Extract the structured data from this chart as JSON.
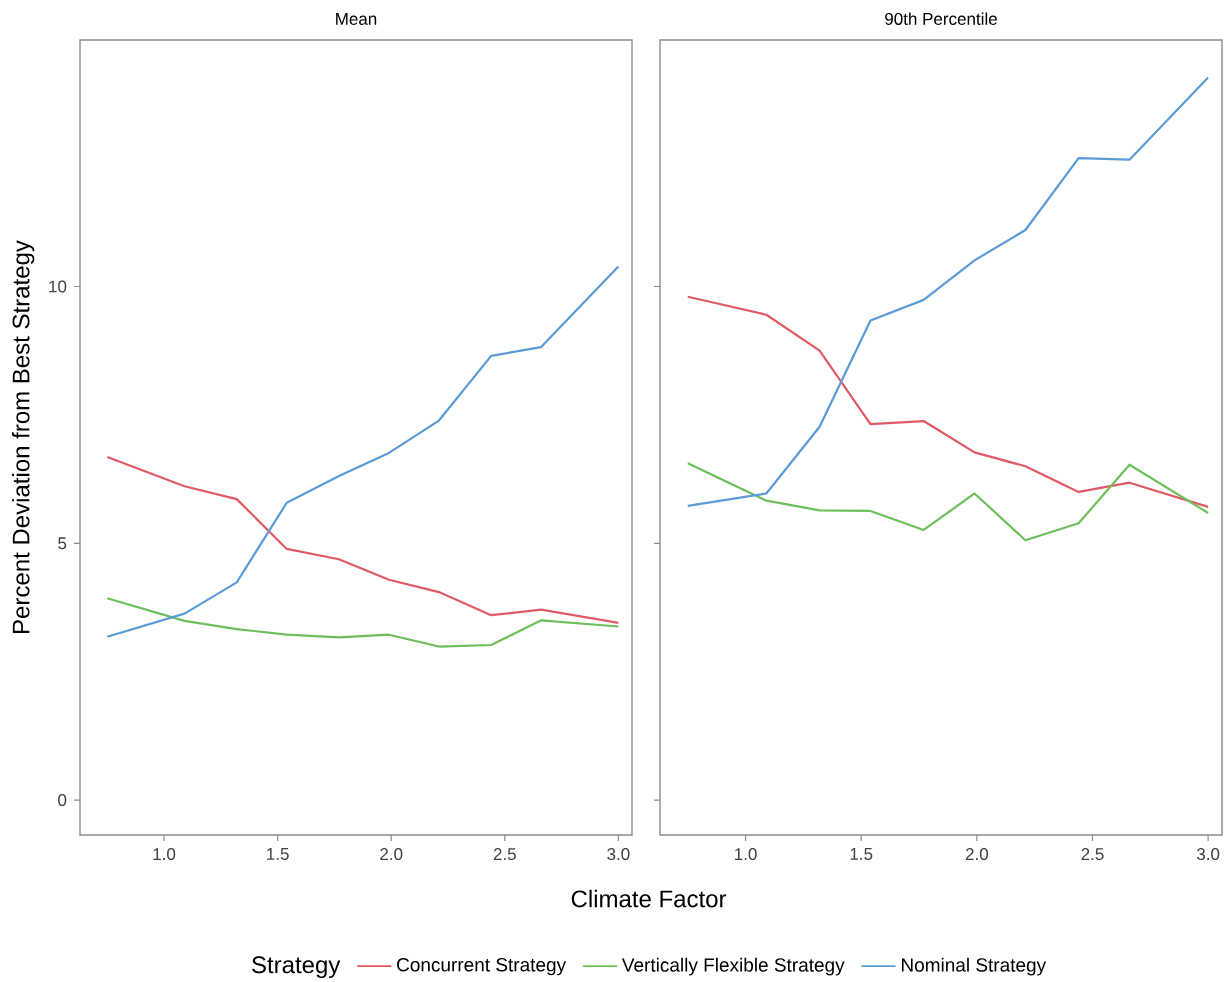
{
  "chart_data": [
    {
      "type": "line",
      "title": "Mean",
      "xlabel": "Climate Factor",
      "ylabel": "Percent Deviation from Best Strategy",
      "legend_title": "Strategy",
      "legend": "bottom",
      "x": [
        0.75,
        1.09,
        1.32,
        1.54,
        1.77,
        1.99,
        2.21,
        2.44,
        2.66,
        3.0
      ],
      "xlim": [
        0.63,
        3.06
      ],
      "ylim": [
        -0.68,
        14.8
      ],
      "xticks": [
        {
          "value": 1,
          "label": "1.0"
        },
        {
          "value": 1.5,
          "label": "1.5"
        },
        {
          "value": 2,
          "label": "2.0"
        },
        {
          "value": 2.5,
          "label": "2.5"
        },
        {
          "value": 3,
          "label": "3.0"
        }
      ],
      "yticks": [
        0,
        5,
        10
      ],
      "series": [
        {
          "name": "Concurrent Strategy",
          "color": "#e05a66",
          "values": [
            6.68,
            6.11,
            5.86,
            4.89,
            4.69,
            4.29,
            4.05,
            3.6,
            3.71,
            3.45
          ]
        },
        {
          "name": "Vertically Flexible Strategy",
          "color": "#6cbf5a",
          "values": [
            3.93,
            3.49,
            3.33,
            3.22,
            3.17,
            3.22,
            2.99,
            3.02,
            3.5,
            3.38
          ]
        },
        {
          "name": "Nominal Strategy",
          "color": "#5b9bd5",
          "values": [
            3.18,
            3.63,
            4.24,
            5.79,
            6.31,
            6.76,
            7.39,
            8.65,
            8.82,
            10.39
          ]
        }
      ]
    },
    {
      "type": "line",
      "title": "90th Percentile",
      "tick_labels": "x",
      "x": [
        0.75,
        1.09,
        1.32,
        1.54,
        1.77,
        1.99,
        2.21,
        2.44,
        2.66,
        3.0
      ],
      "xlim": [
        0.63,
        3.06
      ],
      "ylim": [
        -0.68,
        14.8
      ],
      "xticks": [
        {
          "value": 1,
          "label": "1.0"
        },
        {
          "value": 1.5,
          "label": "1.5"
        },
        {
          "value": 2,
          "label": "2.0"
        },
        {
          "value": 2.5,
          "label": "2.5"
        },
        {
          "value": 3,
          "label": "3.0"
        }
      ],
      "yticks": [
        0,
        5,
        10
      ],
      "series": [
        {
          "color": "#e05a66",
          "values": [
            9.8,
            9.45,
            8.75,
            7.32,
            7.38,
            6.77,
            6.5,
            6.0,
            6.18,
            5.71
          ]
        },
        {
          "color": "#6cbf5a",
          "values": [
            6.56,
            5.83,
            5.64,
            5.63,
            5.26,
            5.97,
            5.06,
            5.39,
            6.53,
            5.59
          ]
        },
        {
          "color": "#5b9bd5",
          "values": [
            5.73,
            5.97,
            7.27,
            9.34,
            9.74,
            10.51,
            11.1,
            12.5,
            12.47,
            14.07
          ]
        }
      ]
    }
  ]
}
